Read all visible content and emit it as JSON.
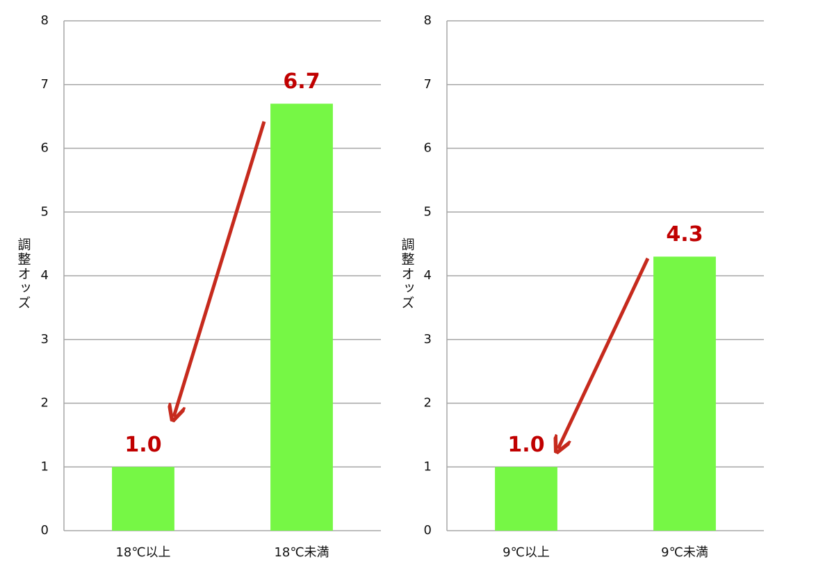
{
  "chart_data": [
    {
      "type": "bar",
      "y_label": "調整オッズ",
      "categories": [
        "18℃以上",
        "18℃未満"
      ],
      "values": [
        1.0,
        6.7
      ],
      "value_labels": [
        "1.0",
        "6.7"
      ],
      "color": "#76f745",
      "label_color": "#c00000",
      "ylim": [
        0,
        8
      ],
      "yticks": [
        0,
        1,
        2,
        3,
        4,
        5,
        6,
        7,
        8
      ],
      "grid": true
    },
    {
      "type": "bar",
      "y_label": "調整オッズ",
      "categories": [
        "9℃以上",
        "9℃未満"
      ],
      "values": [
        1.0,
        4.3
      ],
      "value_labels": [
        "1.0",
        "4.3"
      ],
      "color": "#76f745",
      "label_color": "#c00000",
      "ylim": [
        0,
        8
      ],
      "yticks": [
        0,
        1,
        2,
        3,
        4,
        5,
        6,
        7,
        8
      ],
      "grid": true
    }
  ]
}
